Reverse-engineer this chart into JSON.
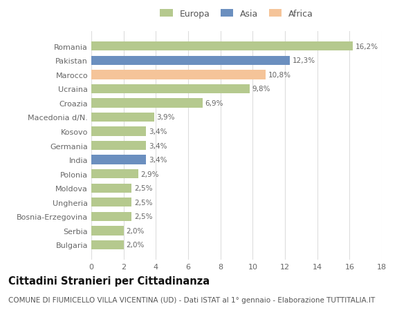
{
  "categories": [
    "Bulgaria",
    "Serbia",
    "Bosnia-Erzegovina",
    "Ungheria",
    "Moldova",
    "Polonia",
    "India",
    "Germania",
    "Kosovo",
    "Macedonia d/N.",
    "Croazia",
    "Ucraina",
    "Marocco",
    "Pakistan",
    "Romania"
  ],
  "values": [
    2.0,
    2.0,
    2.5,
    2.5,
    2.5,
    2.9,
    3.4,
    3.4,
    3.4,
    3.9,
    6.9,
    9.8,
    10.8,
    12.3,
    16.2
  ],
  "labels": [
    "2,0%",
    "2,0%",
    "2,5%",
    "2,5%",
    "2,5%",
    "2,9%",
    "3,4%",
    "3,4%",
    "3,4%",
    "3,9%",
    "6,9%",
    "9,8%",
    "10,8%",
    "12,3%",
    "16,2%"
  ],
  "colors": [
    "#b5c98e",
    "#b5c98e",
    "#b5c98e",
    "#b5c98e",
    "#b5c98e",
    "#b5c98e",
    "#6b8fbf",
    "#b5c98e",
    "#b5c98e",
    "#b5c98e",
    "#b5c98e",
    "#b5c98e",
    "#f5c499",
    "#6b8fbf",
    "#b5c98e"
  ],
  "legend_labels": [
    "Europa",
    "Asia",
    "Africa"
  ],
  "legend_colors": [
    "#b5c98e",
    "#6b8fbf",
    "#f5c499"
  ],
  "title": "Cittadini Stranieri per Cittadinanza",
  "subtitle": "COMUNE DI FIUMICELLO VILLA VICENTINA (UD) - Dati ISTAT al 1° gennaio - Elaborazione TUTTITALIA.IT",
  "xlim": [
    0,
    18
  ],
  "xticks": [
    0,
    2,
    4,
    6,
    8,
    10,
    12,
    14,
    16,
    18
  ],
  "background_color": "#ffffff",
  "grid_color": "#dddddd",
  "bar_height": 0.65,
  "title_fontsize": 10.5,
  "subtitle_fontsize": 7.5,
  "label_fontsize": 7.5,
  "tick_fontsize": 8,
  "legend_fontsize": 9
}
